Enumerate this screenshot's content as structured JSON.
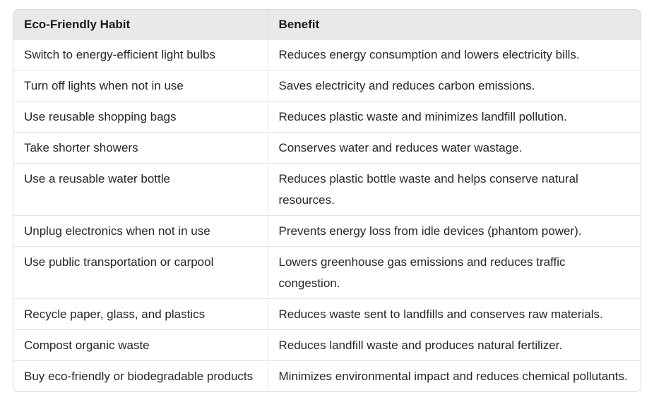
{
  "table": {
    "headers": [
      "Eco-Friendly Habit",
      "Benefit"
    ],
    "rows": [
      [
        "Switch to energy-efficient light bulbs",
        "Reduces energy consumption and lowers electricity bills."
      ],
      [
        "Turn off lights when not in use",
        "Saves electricity and reduces carbon emissions."
      ],
      [
        "Use reusable shopping bags",
        "Reduces plastic waste and minimizes landfill pollution."
      ],
      [
        "Take shorter showers",
        "Conserves water and reduces water wastage."
      ],
      [
        "Use a reusable water bottle",
        "Reduces plastic bottle waste and helps conserve natural resources."
      ],
      [
        "Unplug electronics when not in use",
        "Prevents energy loss from idle devices (phantom power)."
      ],
      [
        "Use public transportation or carpool",
        "Lowers greenhouse gas emissions and reduces traffic congestion."
      ],
      [
        "Recycle paper, glass, and plastics",
        "Reduces waste sent to landfills and conserves raw materials."
      ],
      [
        "Compost organic waste",
        "Reduces landfill waste and produces natural fertilizer."
      ],
      [
        "Buy eco-friendly or biodegradable products",
        "Minimizes environmental impact and reduces chemical pollutants."
      ]
    ]
  }
}
